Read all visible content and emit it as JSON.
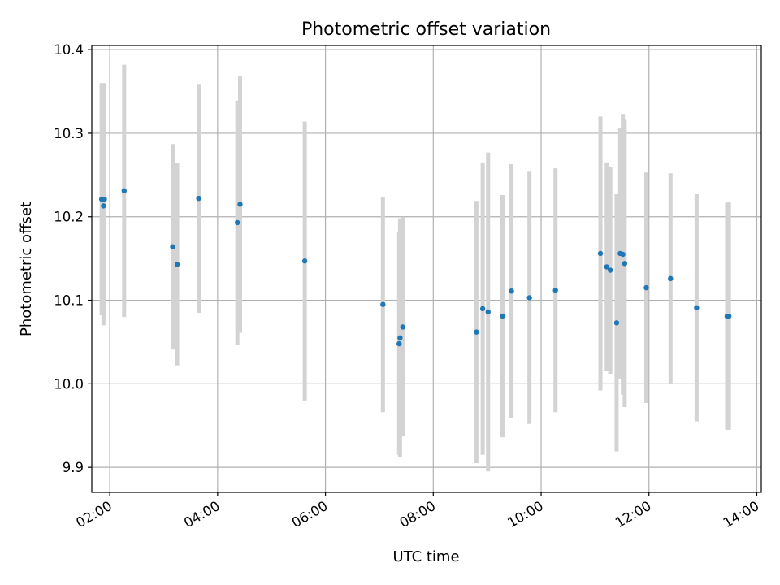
{
  "chart_data": {
    "type": "scatter",
    "title": "Photometric offset variation",
    "xlabel": "UTC time",
    "ylabel": "Photometric offset",
    "xlim": [
      "01:40",
      "14:05"
    ],
    "ylim": [
      9.87,
      10.405
    ],
    "xticks": [
      "02:00",
      "04:00",
      "06:00",
      "08:00",
      "10:00",
      "12:00",
      "14:00"
    ],
    "yticks": [
      9.9,
      10.0,
      10.1,
      10.2,
      10.3,
      10.4
    ],
    "ytick_labels": [
      "9.9",
      "10.0",
      "10.1",
      "10.2",
      "10.3",
      "10.4"
    ],
    "grid": true,
    "point_color": "#1f77b4",
    "errorbar_color": "#d3d3d3",
    "points": [
      {
        "x": "01:51",
        "y": 10.221,
        "err": 0.139
      },
      {
        "x": "01:53",
        "y": 10.213,
        "err": 0.143
      },
      {
        "x": "01:54",
        "y": 10.221,
        "err": 0.139
      },
      {
        "x": "02:16",
        "y": 10.231,
        "err": 0.151
      },
      {
        "x": "03:10",
        "y": 10.164,
        "err": 0.123
      },
      {
        "x": "03:15",
        "y": 10.143,
        "err": 0.121
      },
      {
        "x": "03:39",
        "y": 10.222,
        "err": 0.137
      },
      {
        "x": "04:22",
        "y": 10.193,
        "err": 0.146
      },
      {
        "x": "04:25",
        "y": 10.215,
        "err": 0.154
      },
      {
        "x": "05:37",
        "y": 10.147,
        "err": 0.167
      },
      {
        "x": "07:04",
        "y": 10.095,
        "err": 0.129
      },
      {
        "x": "07:22",
        "y": 10.048,
        "err": 0.133
      },
      {
        "x": "07:23",
        "y": 10.055,
        "err": 0.143
      },
      {
        "x": "07:26",
        "y": 10.068,
        "err": 0.131
      },
      {
        "x": "08:48",
        "y": 10.062,
        "err": 0.157
      },
      {
        "x": "08:55",
        "y": 10.09,
        "err": 0.175
      },
      {
        "x": "09:01",
        "y": 10.086,
        "err": 0.191
      },
      {
        "x": "09:17",
        "y": 10.081,
        "err": 0.145
      },
      {
        "x": "09:27",
        "y": 10.111,
        "err": 0.152
      },
      {
        "x": "09:47",
        "y": 10.103,
        "err": 0.151
      },
      {
        "x": "10:16",
        "y": 10.112,
        "err": 0.146
      },
      {
        "x": "11:06",
        "y": 10.156,
        "err": 0.164
      },
      {
        "x": "11:13",
        "y": 10.14,
        "err": 0.125
      },
      {
        "x": "11:17",
        "y": 10.136,
        "err": 0.124
      },
      {
        "x": "11:24",
        "y": 10.073,
        "err": 0.154
      },
      {
        "x": "11:28",
        "y": 10.156,
        "err": 0.15
      },
      {
        "x": "11:31",
        "y": 10.155,
        "err": 0.168
      },
      {
        "x": "11:33",
        "y": 10.144,
        "err": 0.172
      },
      {
        "x": "11:57",
        "y": 10.115,
        "err": 0.138
      },
      {
        "x": "12:24",
        "y": 10.126,
        "err": 0.126
      },
      {
        "x": "12:53",
        "y": 10.091,
        "err": 0.136
      },
      {
        "x": "13:27",
        "y": 10.081,
        "err": 0.136
      },
      {
        "x": "13:29",
        "y": 10.081,
        "err": 0.136
      }
    ]
  }
}
